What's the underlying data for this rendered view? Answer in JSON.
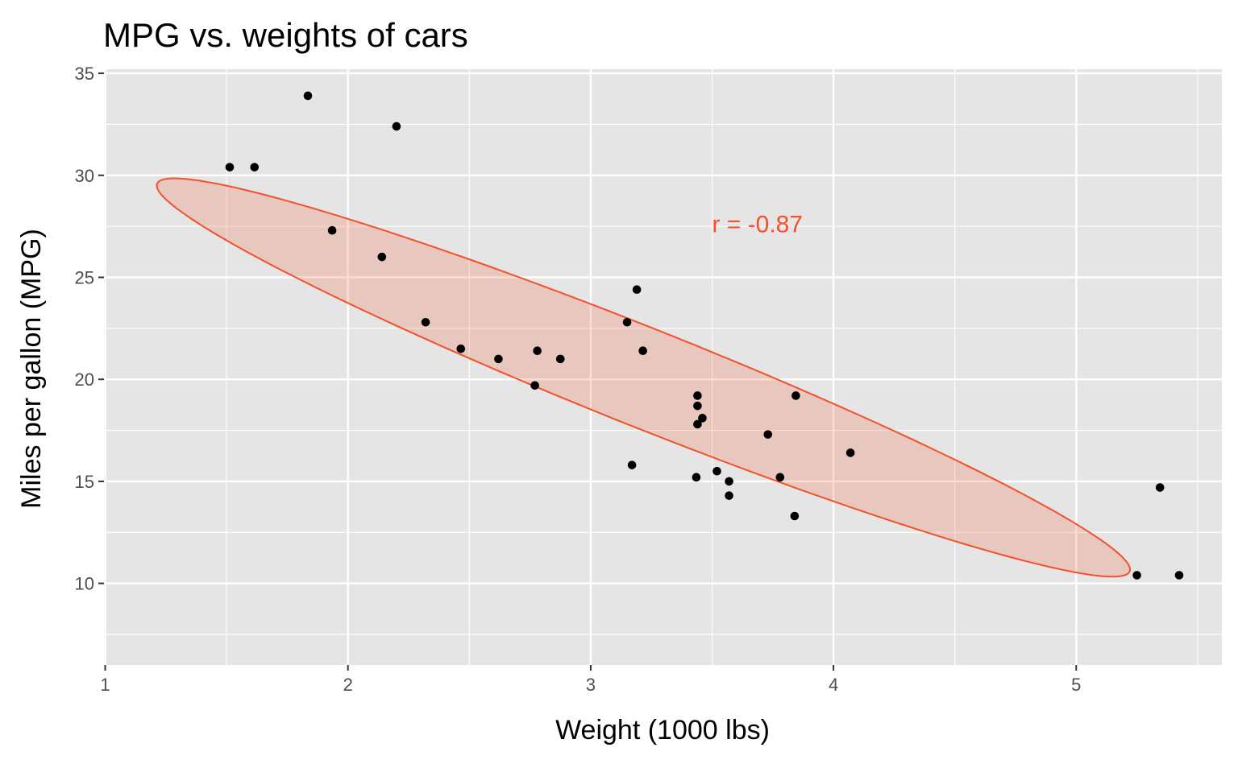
{
  "chart_data": {
    "type": "scatter",
    "title": "MPG vs. weights of cars",
    "xlabel": "Weight (1000 lbs)",
    "ylabel": "Miles per gallon (MPG)",
    "xlim": [
      0.995,
      5.6
    ],
    "ylim": [
      6.0,
      35.2
    ],
    "x_ticks": [
      1,
      2,
      3,
      4,
      5
    ],
    "x_tick_labels": [
      "1",
      "2",
      "3",
      "4",
      "5"
    ],
    "y_ticks": [
      10,
      15,
      20,
      25,
      30,
      35
    ],
    "y_tick_labels": [
      "10",
      "15",
      "20",
      "25",
      "30",
      "35"
    ],
    "grid": true,
    "colors": {
      "panel_background": "#e5e5e5",
      "grid": "#ffffff",
      "points": "#000000",
      "ellipse_stroke": "#f4502a",
      "ellipse_fill": "#f4502a",
      "annotation": "#f4502a"
    },
    "series": [
      {
        "x": [
          2.62,
          2.875,
          2.32,
          3.215,
          3.44,
          3.46,
          3.57,
          3.19,
          3.15,
          3.44,
          3.44,
          4.07,
          3.73,
          3.78,
          5.25,
          5.424,
          5.345,
          2.2,
          1.615,
          1.835,
          2.465,
          3.52,
          3.435,
          3.84,
          3.845,
          1.935,
          2.14,
          1.513,
          3.17,
          2.77,
          3.57,
          2.78
        ],
        "y": [
          21.0,
          21.0,
          22.8,
          21.4,
          18.7,
          18.1,
          14.3,
          24.4,
          22.8,
          19.2,
          17.8,
          16.4,
          17.3,
          15.2,
          10.4,
          10.4,
          14.7,
          32.4,
          30.4,
          33.9,
          21.5,
          15.5,
          15.2,
          13.3,
          19.2,
          27.3,
          26.0,
          30.4,
          15.8,
          19.7,
          15.0,
          21.4
        ]
      }
    ],
    "ellipse": {
      "center": [
        3.217,
        20.09
      ],
      "semi_axes": [
        12.85,
        0.33
      ],
      "angle_deg": -80.9
    },
    "annotations": [
      {
        "text": "r = -0.87",
        "x": 3.5,
        "y": 27.2
      }
    ]
  }
}
